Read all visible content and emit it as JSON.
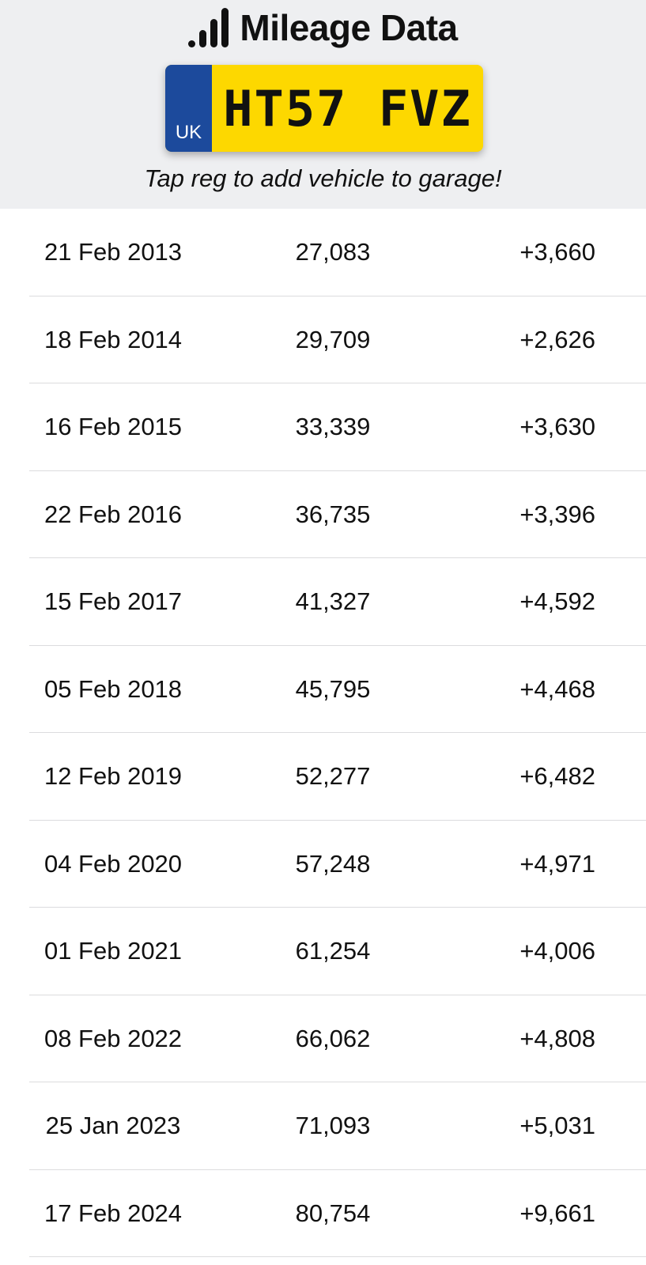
{
  "header": {
    "title": "Mileage Data",
    "icon": "signal-bars-icon",
    "plate": {
      "country": "UK",
      "registration": "HT57 FVZ",
      "band_color": "#1c4a9c",
      "plate_color": "#fdd800"
    },
    "hint": "Tap reg to add vehicle to garage!"
  },
  "rows": [
    {
      "date": "21 Feb 2013",
      "mileage": "27,083",
      "change": "+3,660"
    },
    {
      "date": "18 Feb 2014",
      "mileage": "29,709",
      "change": "+2,626"
    },
    {
      "date": "16 Feb 2015",
      "mileage": "33,339",
      "change": "+3,630"
    },
    {
      "date": "22 Feb 2016",
      "mileage": "36,735",
      "change": "+3,396"
    },
    {
      "date": "15 Feb 2017",
      "mileage": "41,327",
      "change": "+4,592"
    },
    {
      "date": "05 Feb 2018",
      "mileage": "45,795",
      "change": "+4,468"
    },
    {
      "date": "12 Feb 2019",
      "mileage": "52,277",
      "change": "+6,482"
    },
    {
      "date": "04 Feb 2020",
      "mileage": "57,248",
      "change": "+4,971"
    },
    {
      "date": "01 Feb 2021",
      "mileage": "61,254",
      "change": "+4,006"
    },
    {
      "date": "08 Feb 2022",
      "mileage": "66,062",
      "change": "+4,808"
    },
    {
      "date": "25 Jan 2023",
      "mileage": "71,093",
      "change": "+5,031"
    },
    {
      "date": "17 Feb 2024",
      "mileage": "80,754",
      "change": "+9,661"
    }
  ]
}
